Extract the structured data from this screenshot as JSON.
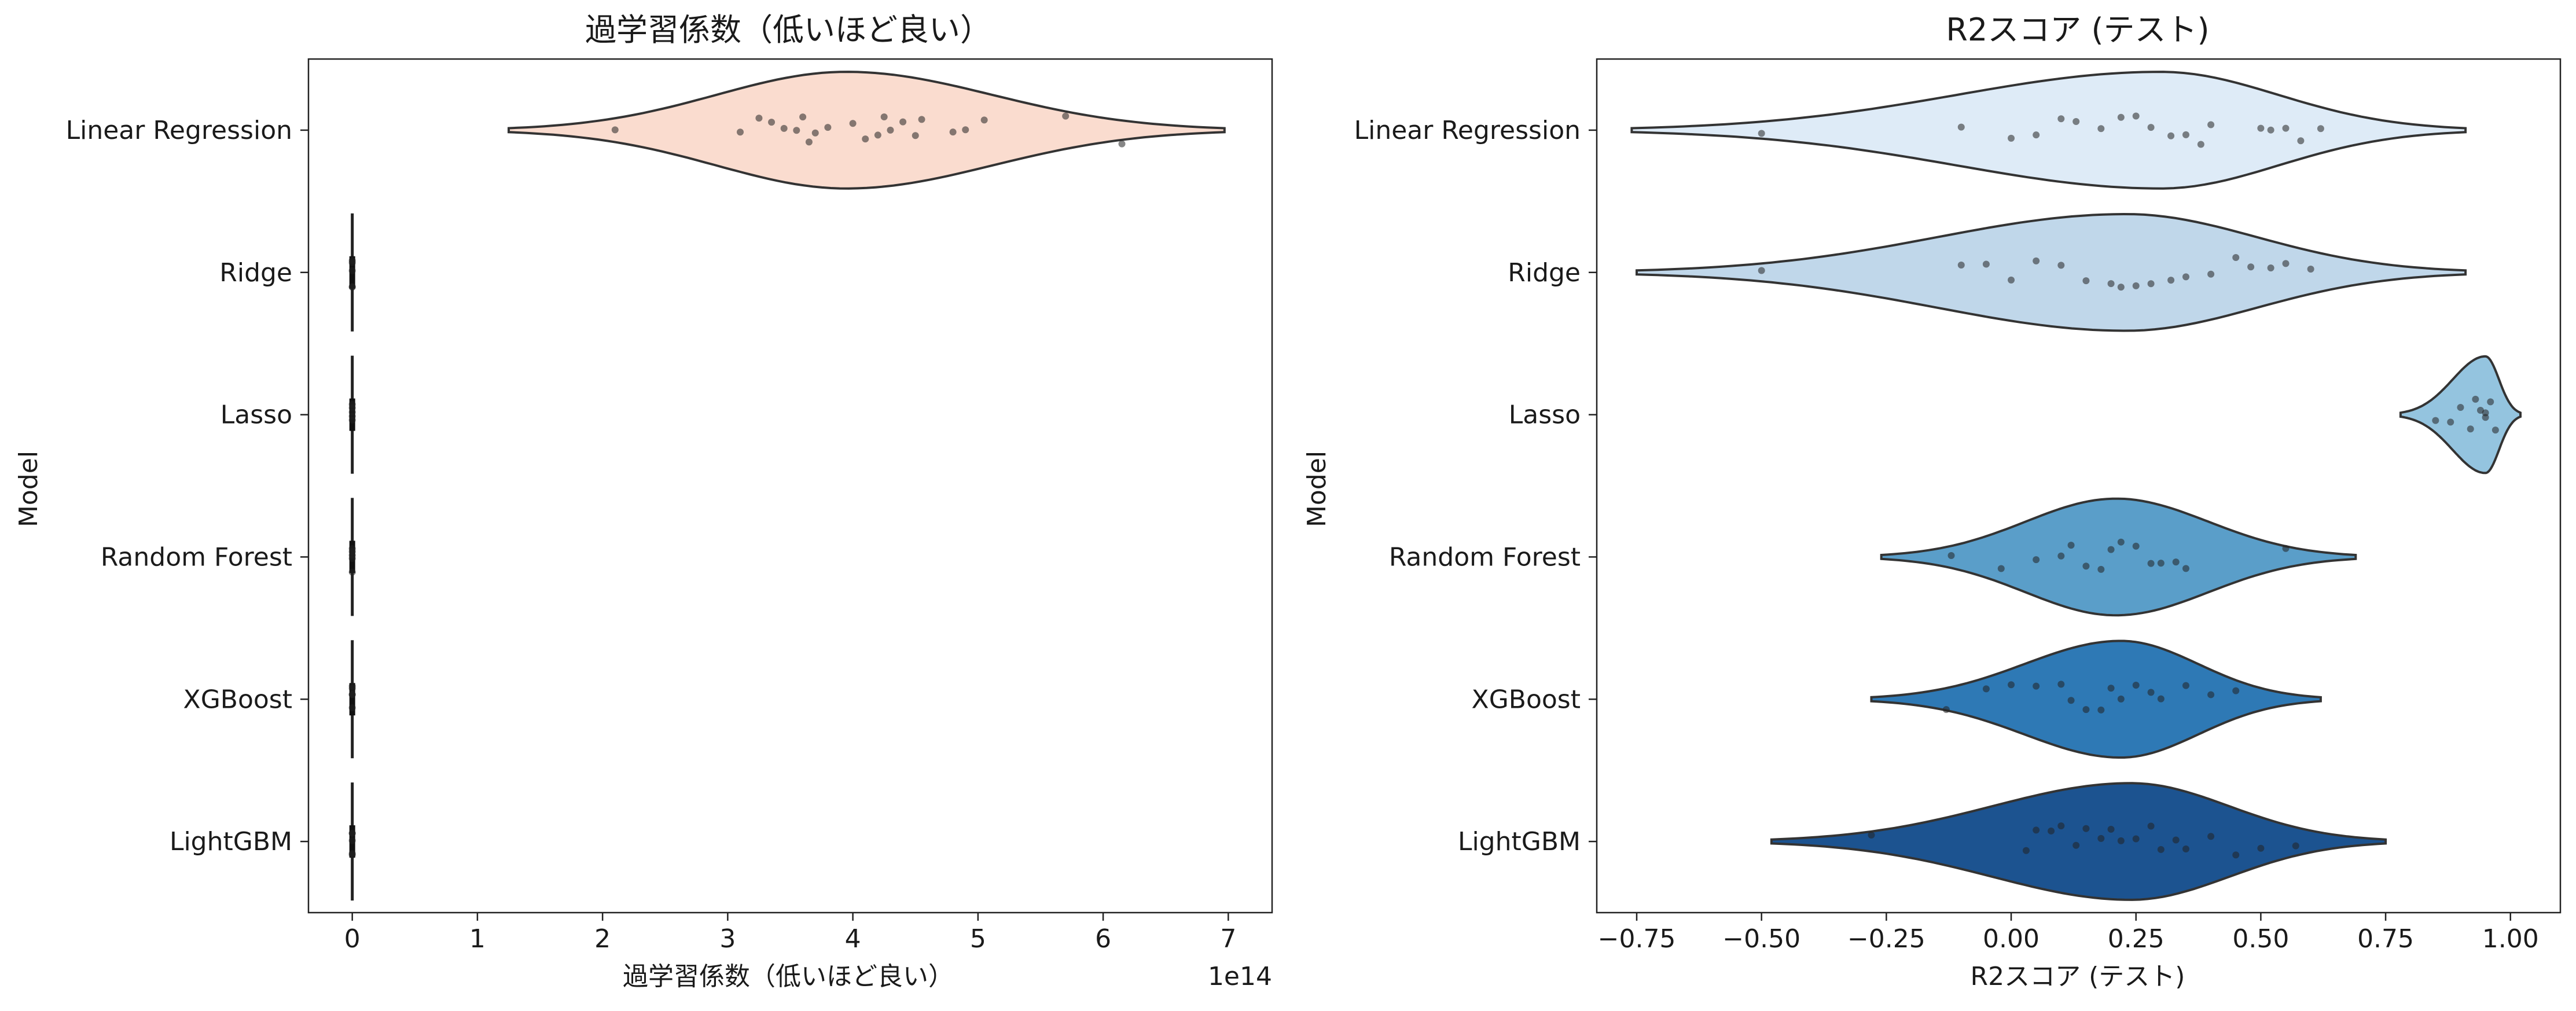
{
  "chart_data": [
    {
      "type": "violin",
      "orientation": "horizontal",
      "title": "過学習係数（低いほど良い）",
      "xlabel": "過学習係数（低いほど良い）",
      "ylabel": "Model",
      "x_offset_text": "1e14",
      "xlim": [
        -0.35,
        7.35
      ],
      "xticks": [
        0,
        1,
        2,
        3,
        4,
        5,
        6,
        7
      ],
      "xtick_labels": [
        "0",
        "1",
        "2",
        "3",
        "4",
        "5",
        "6",
        "7"
      ],
      "categories": [
        "Linear Regression",
        "Ridge",
        "Lasso",
        "Random Forest",
        "XGBoost",
        "LightGBM"
      ],
      "colors": [
        "#fadccf",
        "#fadccf",
        "#fadccf",
        "#fadccf",
        "#fadccf",
        "#fadccf"
      ],
      "grid": false,
      "series": [
        {
          "category": "Linear Regression",
          "points": [
            2.1,
            3.1,
            3.25,
            3.35,
            3.45,
            3.55,
            3.6,
            3.65,
            3.7,
            3.8,
            4.0,
            4.1,
            4.2,
            4.25,
            4.3,
            4.4,
            4.5,
            4.55,
            4.8,
            4.9,
            5.05,
            5.7,
            6.15
          ],
          "violin_range": [
            1.25,
            6.97
          ],
          "violin_peak": 3.95
        },
        {
          "category": "Ridge",
          "points": [
            0,
            0,
            0,
            0,
            0
          ],
          "violin_range": [
            0,
            0
          ],
          "violin_peak": 0
        },
        {
          "category": "Lasso",
          "points": [
            0,
            0,
            0,
            0,
            0
          ],
          "violin_range": [
            0,
            0
          ],
          "violin_peak": 0
        },
        {
          "category": "Random Forest",
          "points": [
            0,
            0,
            0,
            0,
            0
          ],
          "violin_range": [
            0,
            0
          ],
          "violin_peak": 0
        },
        {
          "category": "XGBoost",
          "points": [
            0,
            0,
            0,
            0,
            0
          ],
          "violin_range": [
            0,
            0
          ],
          "violin_peak": 0
        },
        {
          "category": "LightGBM",
          "points": [
            0,
            0,
            0,
            0,
            0
          ],
          "violin_range": [
            0,
            0
          ],
          "violin_peak": 0
        }
      ]
    },
    {
      "type": "violin",
      "orientation": "horizontal",
      "title": "R2スコア (テスト)",
      "xlabel": "R2スコア (テスト)",
      "ylabel": "Model",
      "xlim": [
        -0.83,
        1.1
      ],
      "xticks": [
        -0.75,
        -0.5,
        -0.25,
        0.0,
        0.25,
        0.5,
        0.75,
        1.0
      ],
      "xtick_labels": [
        "−0.75",
        "−0.50",
        "−0.25",
        "0.00",
        "0.25",
        "0.50",
        "0.75",
        "1.00"
      ],
      "categories": [
        "Linear Regression",
        "Ridge",
        "Lasso",
        "Random Forest",
        "XGBoost",
        "LightGBM"
      ],
      "colors": [
        "#deebf7",
        "#c0d7ea",
        "#94c4df",
        "#5a9ec9",
        "#2e79b5",
        "#1c5390"
      ],
      "grid": false,
      "series": [
        {
          "category": "Linear Regression",
          "points": [
            -0.5,
            -0.1,
            0.0,
            0.05,
            0.1,
            0.13,
            0.18,
            0.22,
            0.25,
            0.28,
            0.32,
            0.35,
            0.38,
            0.4,
            0.5,
            0.52,
            0.55,
            0.58,
            0.62
          ],
          "violin_range": [
            -0.76,
            0.91
          ],
          "violin_peak": 0.3
        },
        {
          "category": "Ridge",
          "points": [
            -0.5,
            -0.1,
            -0.05,
            0.0,
            0.05,
            0.1,
            0.15,
            0.2,
            0.22,
            0.25,
            0.28,
            0.32,
            0.35,
            0.4,
            0.45,
            0.48,
            0.52,
            0.55,
            0.6
          ],
          "violin_range": [
            -0.75,
            0.91
          ],
          "violin_peak": 0.23
        },
        {
          "category": "Lasso",
          "points": [
            0.85,
            0.88,
            0.9,
            0.92,
            0.93,
            0.94,
            0.95,
            0.95,
            0.96,
            0.97
          ],
          "violin_range": [
            0.78,
            1.02
          ],
          "violin_peak": 0.95
        },
        {
          "category": "Random Forest",
          "points": [
            -0.12,
            -0.02,
            0.05,
            0.1,
            0.12,
            0.15,
            0.18,
            0.2,
            0.22,
            0.25,
            0.28,
            0.3,
            0.33,
            0.35,
            0.55
          ],
          "violin_range": [
            -0.26,
            0.69
          ],
          "violin_peak": 0.21
        },
        {
          "category": "XGBoost",
          "points": [
            -0.13,
            -0.05,
            0.0,
            0.05,
            0.1,
            0.12,
            0.15,
            0.18,
            0.2,
            0.22,
            0.25,
            0.28,
            0.3,
            0.35,
            0.4,
            0.45
          ],
          "violin_range": [
            -0.28,
            0.62
          ],
          "violin_peak": 0.22
        },
        {
          "category": "LightGBM",
          "points": [
            -0.28,
            0.03,
            0.05,
            0.08,
            0.1,
            0.13,
            0.15,
            0.18,
            0.2,
            0.22,
            0.25,
            0.28,
            0.3,
            0.33,
            0.35,
            0.4,
            0.45,
            0.5,
            0.57
          ],
          "violin_range": [
            -0.48,
            0.75
          ],
          "violin_peak": 0.24
        }
      ]
    }
  ]
}
